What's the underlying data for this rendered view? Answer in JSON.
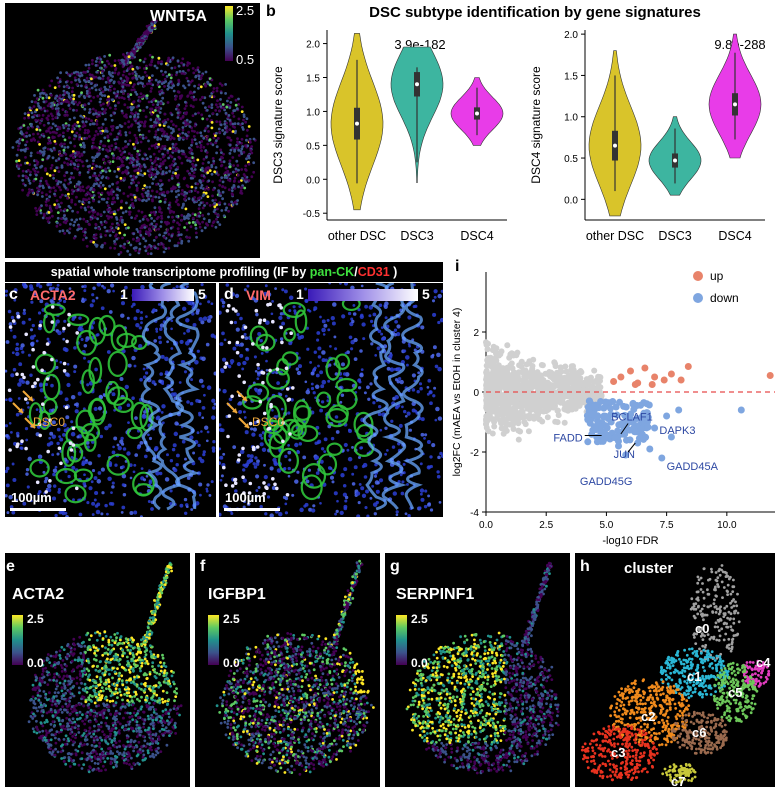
{
  "figure": {
    "panel_labels": [
      "a",
      "b",
      "c",
      "d",
      "e",
      "f",
      "g",
      "h",
      "i"
    ],
    "panel_a": {
      "gene": "WNT5A",
      "colorbar": [
        "2.5",
        "0.5"
      ]
    },
    "panel_b": {
      "title": "DSC subtype identification by gene signatures",
      "left": {
        "ylabel": "DSC3 signature score",
        "pvalue": "3.9e-182",
        "yticks": [
          "-0.5",
          "0.0",
          "0.5",
          "1.0",
          "1.5",
          "2.0"
        ]
      },
      "right": {
        "ylabel": "DSC4 signature score",
        "pvalue": "9.8e-288",
        "yticks": [
          "0.0",
          "0.5",
          "1.0",
          "1.5",
          "2.0"
        ]
      },
      "categories": [
        "other DSC",
        "DSC3",
        "DSC4"
      ],
      "colors": [
        "#d9c42a",
        "#3db5a0",
        "#e83ce8"
      ]
    },
    "spatial": {
      "banner_prefix": "spatial whole transcriptome profiling (IF by ",
      "banner_green": "pan-CK",
      "banner_slash": "/",
      "banner_red": "CD31",
      "banner_suffix": " )",
      "panel_c": {
        "gene": "ACTA2",
        "min": "1",
        "max": "5",
        "annotation": "DSC0",
        "scale_bar": "100µm"
      },
      "panel_d": {
        "gene": "VIM",
        "min": "1",
        "max": "5",
        "annotation": "DSC0",
        "scale_bar": "100µm"
      }
    },
    "umaps": {
      "e": {
        "gene": "ACTA2",
        "max": "2.5",
        "min": "0.0"
      },
      "f": {
        "gene": "IGFBP1",
        "max": "2.5",
        "min": "0.0"
      },
      "g": {
        "gene": "SERPINF1",
        "max": "2.5",
        "min": "0.0"
      },
      "h": {
        "title": "cluster",
        "clusters": [
          "c0",
          "c1",
          "c2",
          "c3",
          "c4",
          "c5",
          "c6",
          "c7"
        ]
      }
    },
    "panel_i": {
      "ylabel": "log2FC (mAEA vs EtOH in cluster 4)",
      "xlabel": "-log10 FDR",
      "xticks": [
        "0.0",
        "2.5",
        "5.0",
        "7.5",
        "10.0"
      ],
      "yticks": [
        "-4",
        "-2",
        "0",
        "2"
      ],
      "legend": [
        "up",
        "down"
      ],
      "colors": {
        "up": "#e8836a",
        "down": "#7fa6e0",
        "ns": "#d0d0d0"
      },
      "genes": [
        "BCLAF1",
        "DAPK3",
        "FADD",
        "JUN",
        "GADD45A",
        "GADD45G"
      ]
    }
  },
  "chart_data": [
    {
      "type": "violin",
      "categories": [
        "other DSC",
        "DSC3",
        "DSC4"
      ],
      "ylabel": "DSC3 signature score",
      "ylim": [
        -0.6,
        2.2
      ],
      "medians": [
        0.82,
        1.4,
        0.97
      ],
      "ranges": [
        [
          -0.45,
          2.15
        ],
        [
          -0.05,
          1.95
        ],
        [
          0.5,
          1.5
        ]
      ]
    },
    {
      "type": "violin",
      "categories": [
        "other DSC",
        "DSC3",
        "DSC4"
      ],
      "ylabel": "DSC4 signature score",
      "ylim": [
        -0.25,
        2.05
      ],
      "medians": [
        0.65,
        0.47,
        1.15
      ],
      "ranges": [
        [
          -0.2,
          1.8
        ],
        [
          0.05,
          1.0
        ],
        [
          0.5,
          2.0
        ]
      ]
    },
    {
      "type": "scatter",
      "xlabel": "-log10 FDR",
      "ylabel": "log2FC (mAEA vs EtOH in cluster 4)",
      "xlim": [
        0,
        12
      ],
      "ylim": [
        -4,
        4
      ],
      "series": [
        {
          "name": "up",
          "points": [
            [
              5.6,
              0.5
            ],
            [
              6.0,
              0.7
            ],
            [
              6.3,
              0.3
            ],
            [
              6.6,
              0.8
            ],
            [
              7.0,
              0.5
            ],
            [
              7.4,
              0.4
            ],
            [
              8.1,
              0.4
            ],
            [
              8.4,
              0.85
            ],
            [
              6.9,
              0.25
            ],
            [
              11.8,
              0.55
            ],
            [
              5.3,
              0.35
            ],
            [
              6.2,
              0.25
            ],
            [
              7.7,
              0.6
            ]
          ]
        },
        {
          "name": "down",
          "points": [
            [
              4.5,
              -0.6
            ],
            [
              4.9,
              -0.8
            ],
            [
              5.2,
              -1.0
            ],
            [
              5.4,
              -0.5
            ],
            [
              5.7,
              -1.3
            ],
            [
              6.0,
              -0.9
            ],
            [
              6.3,
              -1.7
            ],
            [
              6.7,
              -0.7
            ],
            [
              7.0,
              -1.2
            ],
            [
              7.3,
              -2.2
            ],
            [
              7.7,
              -1.5
            ],
            [
              8.0,
              -0.6
            ],
            [
              5.8,
              -2.1
            ],
            [
              6.1,
              -0.4
            ],
            [
              4.7,
              -1.2
            ],
            [
              5.1,
              -1.5
            ],
            [
              6.5,
              -1.0
            ],
            [
              10.6,
              -0.6
            ],
            [
              4.3,
              -0.3
            ],
            [
              5.5,
              -1.8
            ],
            [
              6.8,
              -1.9
            ],
            [
              7.5,
              -0.8
            ]
          ]
        }
      ]
    }
  ]
}
